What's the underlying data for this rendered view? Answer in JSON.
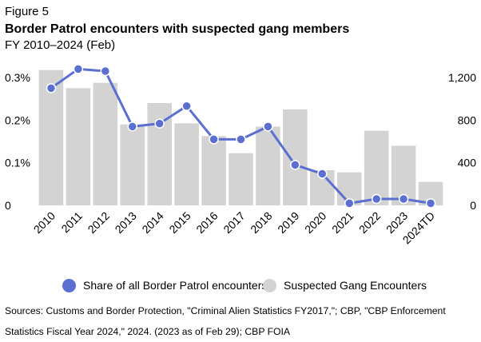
{
  "header": {
    "figure_label": "Figure 5",
    "title": "Border Patrol encounters with suspected gang members",
    "subtitle": "FY 2010–2024 (Feb)"
  },
  "colors": {
    "bar": "#d3d3d3",
    "line": "#5b6fd0",
    "marker_fill": "#5b6fd0",
    "marker_stroke": "#ffffff"
  },
  "chart_data": {
    "type": "bar+line",
    "categories": [
      "2010",
      "2011",
      "2012",
      "2013",
      "2014",
      "2015",
      "2016",
      "2017",
      "2018",
      "2019",
      "2020",
      "2021",
      "2022",
      "2023",
      "2024TD"
    ],
    "series": [
      {
        "name": "Suspected Gang Encounters",
        "type": "bar",
        "axis": "right",
        "values": [
          1270,
          1100,
          1150,
          760,
          960,
          770,
          650,
          490,
          740,
          900,
          330,
          310,
          700,
          560,
          220
        ]
      },
      {
        "name": "Share of all Border Patrol encounters",
        "type": "line",
        "axis": "left",
        "values": [
          0.275,
          0.32,
          0.315,
          0.185,
          0.192,
          0.233,
          0.155,
          0.155,
          0.185,
          0.095,
          0.074,
          0.005,
          0.015,
          0.015,
          0.005
        ]
      }
    ],
    "left_axis": {
      "min": 0,
      "max": 0.3,
      "ticks": [
        0,
        0.1,
        0.2,
        0.3
      ],
      "tick_labels": [
        "0",
        "0.1%",
        "0.2%",
        "0.3%"
      ]
    },
    "right_axis": {
      "min": 0,
      "max": 1200,
      "ticks": [
        0,
        400,
        800,
        1200
      ],
      "tick_labels": [
        "0",
        "400",
        "800",
        "1,200"
      ]
    },
    "grid": false,
    "legend_position": "bottom"
  },
  "footer": {
    "sources": "Sources: Customs and Border Protection, \"Criminal Alien Statistics FY2017,\"; CBP, \"CBP Enforcement Statistics Fiscal Year 2024,\" 2024. (2023 as of Feb 29); CBP FOIA"
  }
}
